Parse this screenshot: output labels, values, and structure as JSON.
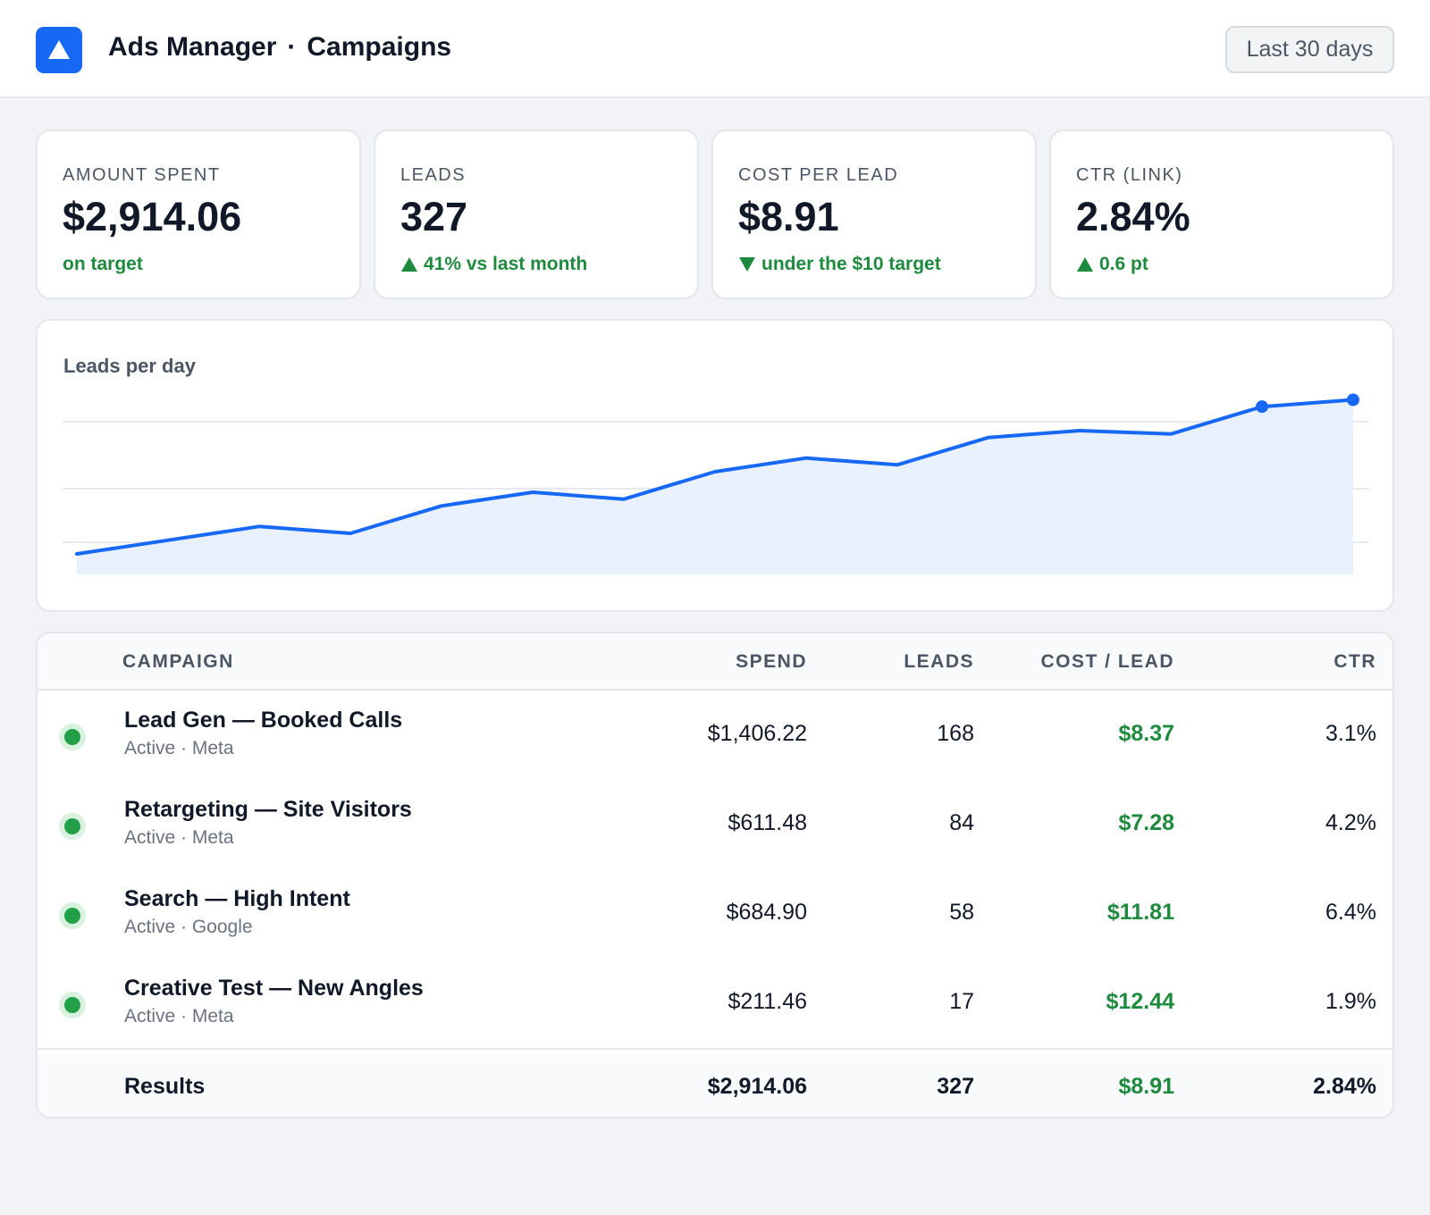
{
  "header": {
    "app_name": "Ads Manager",
    "separator": "·",
    "section": "Campaigns",
    "logo_icon": "triangle-logo-icon",
    "date_range": "Last 30 days"
  },
  "colors": {
    "accent": "#1769f5",
    "positive": "#1e8a3e",
    "status_active": "#22a047"
  },
  "kpis": [
    {
      "label": "AMOUNT SPENT",
      "value": "$2,914.06",
      "delta": "on target",
      "trend": "none"
    },
    {
      "label": "LEADS",
      "value": "327",
      "delta": "41% vs last month",
      "trend": "up"
    },
    {
      "label": "COST PER LEAD",
      "value": "$8.91",
      "delta": "under the $10 target",
      "trend": "down"
    },
    {
      "label": "CTR (LINK)",
      "value": "2.84%",
      "delta": "0.6 pt",
      "trend": "up"
    }
  ],
  "chart_data": {
    "type": "area",
    "title": "Leads per day",
    "xlabel": "",
    "ylabel": "",
    "grid": true,
    "x": [
      1,
      2,
      3,
      4,
      5,
      6,
      7,
      8,
      9,
      10,
      11,
      12,
      13,
      14,
      15
    ],
    "series": [
      {
        "values": [
          5,
          7,
          9,
          8,
          12,
          14,
          13,
          17,
          19,
          18,
          22,
          23,
          22.5,
          26.5,
          27.5
        ]
      }
    ],
    "highlighted_points": [
      14,
      15
    ],
    "ylim": [
      2,
      32
    ]
  },
  "table": {
    "headers": {
      "campaign": "CAMPAIGN",
      "spend": "SPEND",
      "leads": "LEADS",
      "cpl": "COST / LEAD",
      "ctr": "CTR"
    },
    "rows": [
      {
        "name": "Lead Gen — Booked Calls",
        "meta": "Active · Meta",
        "spend": "$1,406.22",
        "leads": "168",
        "cpl": "$8.37",
        "ctr": "3.1%"
      },
      {
        "name": "Retargeting — Site Visitors",
        "meta": "Active · Meta",
        "spend": "$611.48",
        "leads": "84",
        "cpl": "$7.28",
        "ctr": "4.2%"
      },
      {
        "name": "Search — High Intent",
        "meta": "Active · Google",
        "spend": "$684.90",
        "leads": "58",
        "cpl": "$11.81",
        "ctr": "6.4%"
      },
      {
        "name": "Creative Test — New Angles",
        "meta": "Active · Meta",
        "spend": "$211.46",
        "leads": "17",
        "cpl": "$12.44",
        "ctr": "1.9%"
      }
    ],
    "totals": {
      "label": "Results",
      "spend": "$2,914.06",
      "leads": "327",
      "cpl": "$8.91",
      "ctr": "2.84%"
    }
  }
}
